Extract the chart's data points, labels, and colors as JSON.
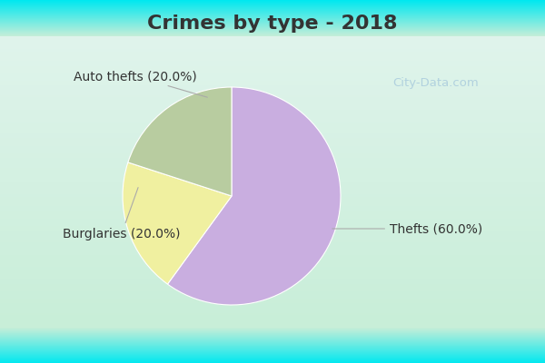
{
  "title": "Crimes by type - 2018",
  "slices": [
    {
      "label": "Thefts (60.0%)",
      "value": 60.0,
      "color": "#c9aee0"
    },
    {
      "label": "Auto thefts (20.0%)",
      "value": 20.0,
      "color": "#f0f0a0"
    },
    {
      "label": "Burglaries (20.0%)",
      "value": 20.0,
      "color": "#b8cca0"
    }
  ],
  "bg_color_top": "#00e8f0",
  "bg_color_main": "#c8eed8",
  "bg_gradient_mid": "#d8f0e4",
  "title_fontsize": 16,
  "label_fontsize": 10,
  "title_color": "#333333",
  "watermark": "City-Data.com",
  "watermark_color": "#aaccdd"
}
